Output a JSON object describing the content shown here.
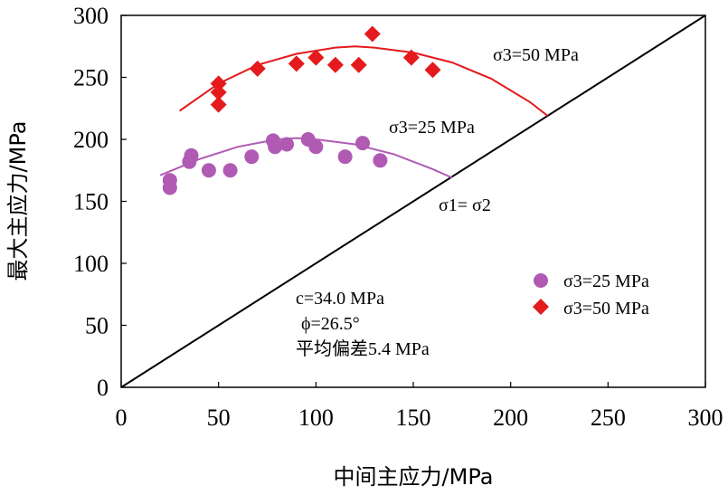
{
  "chart_data": {
    "type": "scatter",
    "title": "",
    "xlabel": "中间主应力/MPa",
    "ylabel": "最大主应力/MPa",
    "xlim": [
      0,
      300
    ],
    "ylim": [
      0,
      300
    ],
    "xticks": [
      0,
      50,
      100,
      150,
      200,
      250,
      300
    ],
    "yticks": [
      0,
      50,
      100,
      150,
      200,
      250,
      300
    ],
    "grid": false,
    "legend_position": "right",
    "series": [
      {
        "name": "σ3=25 MPa",
        "marker": "circle",
        "color": "#b05ab4",
        "x": [
          25,
          25,
          35,
          36,
          45,
          56,
          67,
          78,
          79,
          85,
          96,
          100,
          115,
          124,
          133
        ],
        "y": [
          167,
          161,
          182,
          187,
          175,
          175,
          186,
          199,
          194,
          196,
          200,
          194,
          186,
          197,
          183
        ]
      },
      {
        "name": "σ3=50 MPa",
        "marker": "diamond",
        "color": "#e41a1c",
        "x": [
          50,
          50,
          50,
          70,
          90,
          100,
          110,
          122,
          129,
          149,
          160
        ],
        "y": [
          245,
          238,
          228,
          257,
          261,
          266,
          260,
          260,
          285,
          266,
          256
        ]
      }
    ],
    "fit_curves": [
      {
        "name": "fit σ3=25 MPa",
        "color": "#b05ab4",
        "x": [
          20,
          40,
          60,
          80,
          90,
          100,
          120,
          140,
          160,
          170
        ],
        "y": [
          171,
          184,
          194,
          200,
          201,
          200,
          196,
          188,
          176,
          169
        ]
      },
      {
        "name": "fit σ3=50 MPa",
        "color": "#e41a1c",
        "x": [
          30,
          50,
          70,
          90,
          110,
          120,
          130,
          150,
          170,
          190,
          210,
          219
        ],
        "y": [
          223,
          245,
          260,
          269,
          274,
          275,
          274,
          270,
          262,
          249,
          230,
          219
        ]
      }
    ],
    "reference_line": {
      "label": "σ1= σ2",
      "x": [
        0,
        300
      ],
      "y": [
        0,
        300
      ]
    },
    "annotations": {
      "curve_label_50": "σ3=50 MPa",
      "curve_label_25": "σ3=25 MPa",
      "line_label": "σ1= σ2",
      "cohesion": "c=34.0 MPa",
      "friction": "ϕ=26.5°",
      "mean_dev": "平均偏差5.4 MPa"
    },
    "legend": [
      {
        "label": "σ3=25 MPa",
        "marker": "circle"
      },
      {
        "label": "σ3=50 MPa",
        "marker": "diamond"
      }
    ]
  }
}
